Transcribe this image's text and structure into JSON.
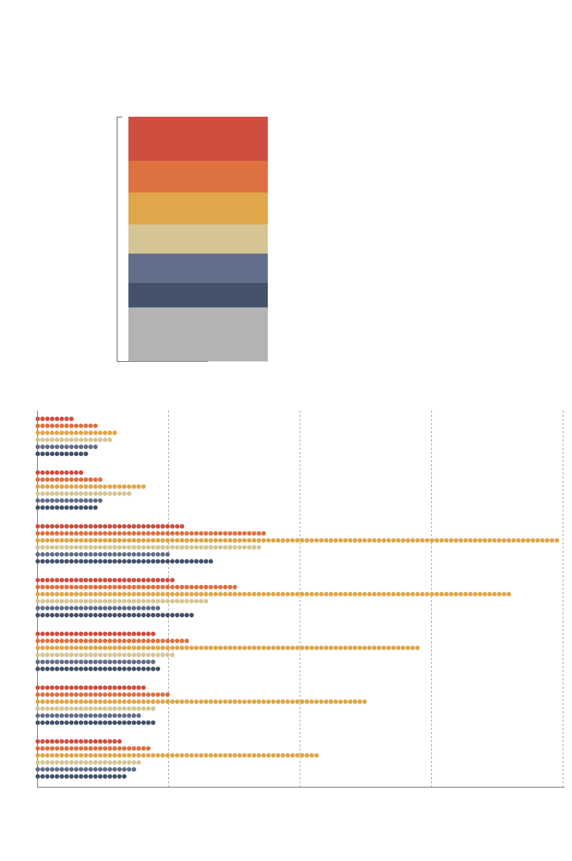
{
  "chart_data": [
    {
      "type": "bar",
      "stacked": true,
      "orientation": "vertical",
      "title": "",
      "xlabel": "",
      "ylabel": "",
      "ylim": [
        0,
        1
      ],
      "legend": "none",
      "grid": false,
      "series": [
        {
          "color": "#d04e40",
          "values": [
            0.18
          ]
        },
        {
          "color": "#dd7140",
          "values": [
            0.13
          ]
        },
        {
          "color": "#dfa64b",
          "values": [
            0.13
          ]
        },
        {
          "color": "#d5c594",
          "values": [
            0.12
          ]
        },
        {
          "color": "#636f8a",
          "values": [
            0.12
          ]
        },
        {
          "color": "#43526a",
          "values": [
            0.1
          ]
        },
        {
          "color": "#b3b3b3",
          "values": [
            0.22
          ]
        }
      ]
    },
    {
      "type": "bar",
      "orientation": "horizontal",
      "style": "dot-rows",
      "title": "",
      "xlabel": "",
      "ylabel": "",
      "xlim": [
        0,
        4
      ],
      "grid": true,
      "legend": "none",
      "groups": 7,
      "series": [
        {
          "color": "#d04e40",
          "values": [
            0.27,
            0.35,
            1.12,
            1.04,
            0.89,
            0.83,
            0.66
          ]
        },
        {
          "color": "#dd7140",
          "values": [
            0.45,
            0.52,
            1.74,
            1.54,
            1.15,
            1.0,
            0.86
          ]
        },
        {
          "color": "#dfa64b",
          "values": [
            0.6,
            0.84,
            3.96,
            3.62,
            2.92,
            2.53,
            2.15
          ]
        },
        {
          "color": "#d5c594",
          "values": [
            0.58,
            0.72,
            1.7,
            1.3,
            1.04,
            0.92,
            0.79
          ]
        },
        {
          "color": "#636f8a",
          "values": [
            0.47,
            0.51,
            1.01,
            0.93,
            0.89,
            0.79,
            0.75
          ]
        },
        {
          "color": "#43526a",
          "values": [
            0.41,
            0.45,
            1.35,
            1.19,
            0.94,
            0.89,
            0.7
          ]
        }
      ]
    }
  ]
}
